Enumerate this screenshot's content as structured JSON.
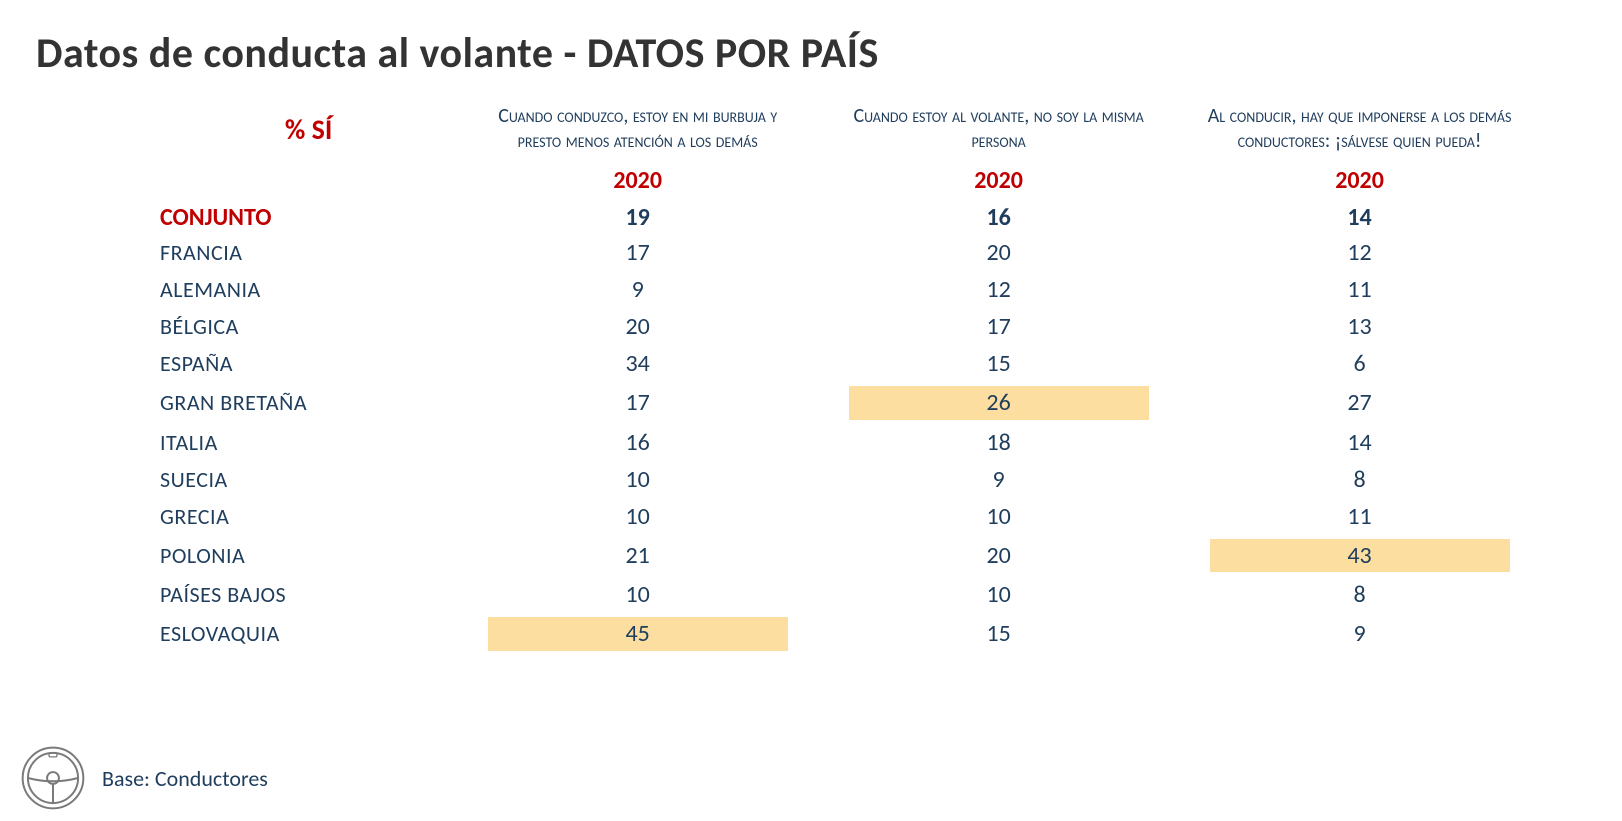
{
  "title": "Datos de conducta al volante - DATOS POR PAÍS",
  "pct_si": "% SÍ",
  "columns": {
    "q1": "Cuando conduzco, estoy en mi burbuja y presto menos atención a los demás",
    "q2": "Cuando estoy al volante, no soy la misma persona",
    "q3": "Al conducir, hay que imponerse a los demás conductores: ¡sálvese quien pueda!"
  },
  "year": "2020",
  "conjunto_label": "CONJUNTO",
  "conjunto": {
    "q1": "19",
    "q2": "16",
    "q3": "14"
  },
  "rows": [
    {
      "label": "FRANCIA",
      "q1": "17",
      "q2": "20",
      "q3": "12"
    },
    {
      "label": "ALEMANIA",
      "q1": "9",
      "q2": "12",
      "q3": "11"
    },
    {
      "label": "BÉLGICA",
      "q1": "20",
      "q2": "17",
      "q3": "13"
    },
    {
      "label": "ESPAÑA",
      "q1": "34",
      "q2": "15",
      "q3": "6"
    },
    {
      "label": "GRAN BRETAÑA",
      "q1": "17",
      "q2": "26",
      "q3": "27",
      "hl": [
        "q2"
      ]
    },
    {
      "label": "ITALIA",
      "q1": "16",
      "q2": "18",
      "q3": "14"
    },
    {
      "label": "SUECIA",
      "q1": "10",
      "q2": "9",
      "q3": "8"
    },
    {
      "label": "GRECIA",
      "q1": "10",
      "q2": "10",
      "q3": "11"
    },
    {
      "label": "POLONIA",
      "q1": "21",
      "q2": "20",
      "q3": "43",
      "hl": [
        "q3"
      ]
    },
    {
      "label": "PAÍSES BAJOS",
      "q1": "10",
      "q2": "10",
      "q3": "8"
    },
    {
      "label": "ESLOVAQUIA",
      "q1": "45",
      "q2": "15",
      "q3": "9",
      "hl": [
        "q1"
      ]
    }
  ],
  "highlight_color": "#fcdea0",
  "text_color": "#1f3d5c",
  "accent_color": "#c00000",
  "base_label": "Base: Conductores",
  "icon_name": "steering-wheel-icon"
}
